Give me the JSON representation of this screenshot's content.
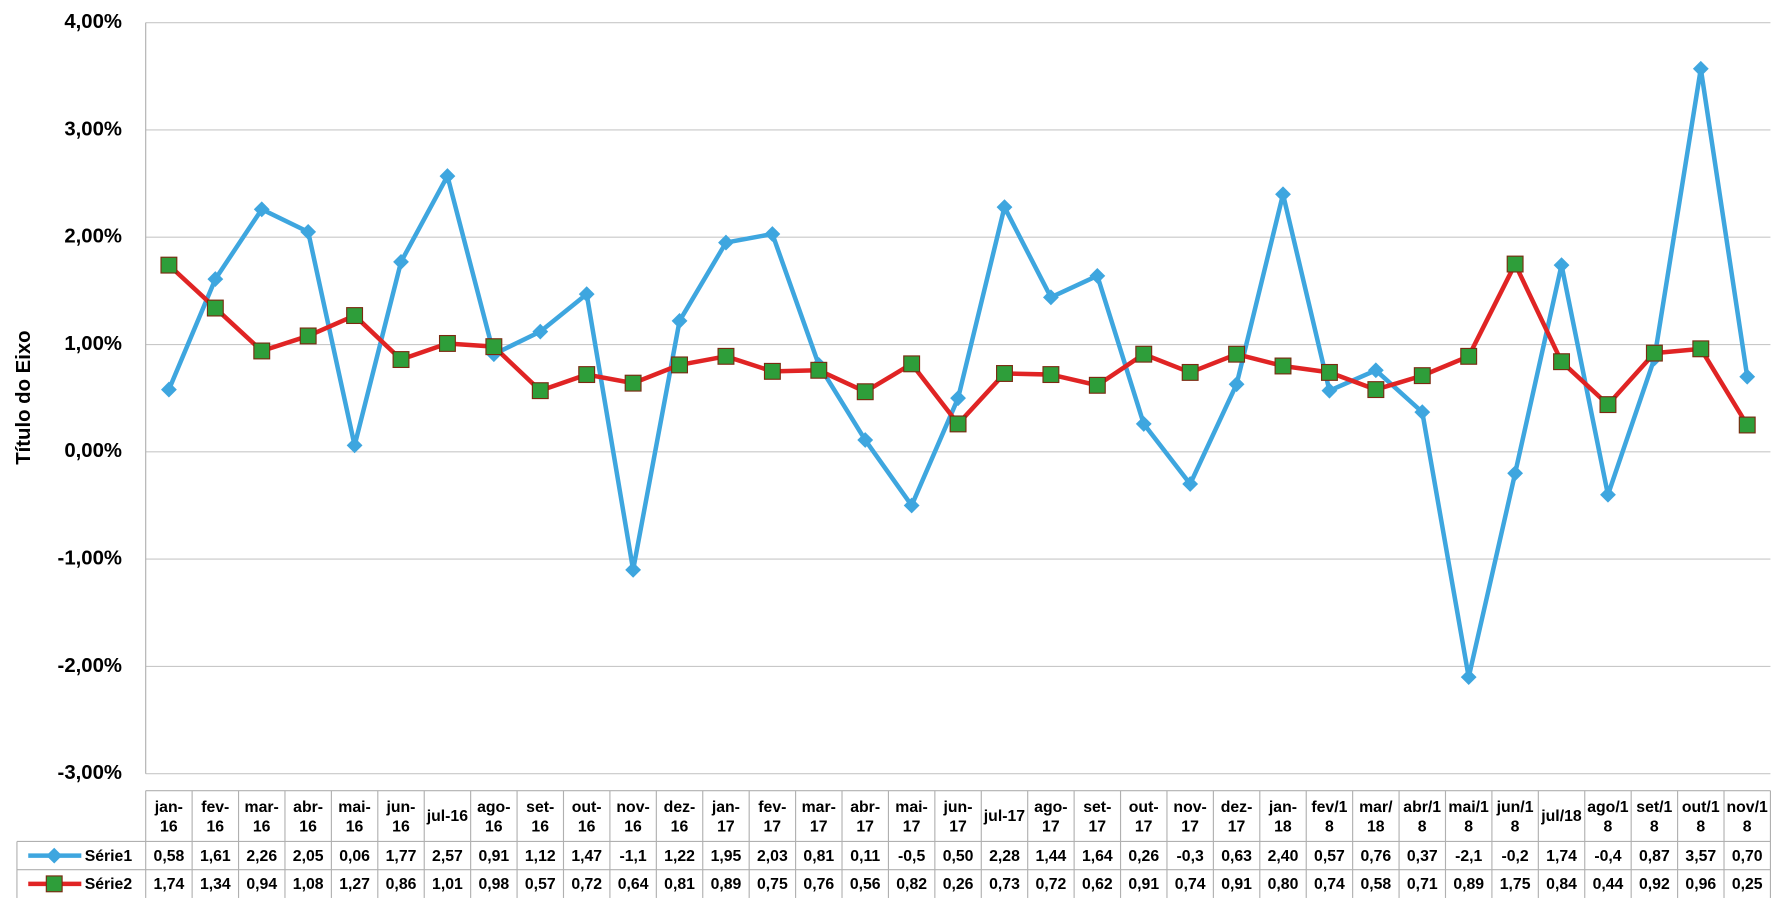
{
  "chart_data": {
    "type": "line",
    "y_axis_title": "Título do Eixo",
    "categories": [
      "jan-16",
      "fev-16",
      "mar-16",
      "abr-16",
      "mai-16",
      "jun-16",
      "jul-16",
      "ago-16",
      "set-16",
      "out-16",
      "nov-16",
      "dez-16",
      "jan-17",
      "fev-17",
      "mar-17",
      "abr-17",
      "mai-17",
      "jun-17",
      "jul-17",
      "ago-17",
      "set-17",
      "out-17",
      "nov-17",
      "dez-17",
      "jan-18",
      "fev/18",
      "mar/18",
      "abr/18",
      "mai/18",
      "jun/18",
      "jul/18",
      "ago/18",
      "set/18",
      "out/18",
      "nov/18"
    ],
    "series": [
      {
        "name": "Série1",
        "color": "#3ea6df",
        "marker": "diamond",
        "marker_color": "#3ea6df",
        "values": [
          0.58,
          1.61,
          2.26,
          2.05,
          0.06,
          1.77,
          2.57,
          0.91,
          1.12,
          1.47,
          -1.1,
          1.22,
          1.95,
          2.03,
          0.81,
          0.11,
          -0.5,
          0.5,
          2.28,
          1.44,
          1.64,
          0.26,
          -0.3,
          0.63,
          2.4,
          0.57,
          0.76,
          0.37,
          -2.1,
          -0.2,
          1.74,
          -0.4,
          0.87,
          3.57,
          0.7
        ],
        "value_labels": [
          "0,58",
          "1,61",
          "2,26",
          "2,05",
          "0,06",
          "1,77",
          "2,57",
          "0,91",
          "1,12",
          "1,47",
          "-1,1",
          "1,22",
          "1,95",
          "2,03",
          "0,81",
          "0,11",
          "-0,5",
          "0,50",
          "2,28",
          "1,44",
          "1,64",
          "0,26",
          "-0,3",
          "0,63",
          "2,40",
          "0,57",
          "0,76",
          "0,37",
          "-2,1",
          "-0,2",
          "1,74",
          "-0,4",
          "0,87",
          "3,57",
          "0,70"
        ]
      },
      {
        "name": "Série2",
        "color": "#e02424",
        "marker": "square",
        "marker_color": "#2e9e3a",
        "values": [
          1.74,
          1.34,
          0.94,
          1.08,
          1.27,
          0.86,
          1.01,
          0.98,
          0.57,
          0.72,
          0.64,
          0.81,
          0.89,
          0.75,
          0.76,
          0.56,
          0.82,
          0.26,
          0.73,
          0.72,
          0.62,
          0.91,
          0.74,
          0.91,
          0.8,
          0.74,
          0.58,
          0.71,
          0.89,
          1.75,
          0.84,
          0.44,
          0.92,
          0.96,
          0.25
        ],
        "value_labels": [
          "1,74",
          "1,34",
          "0,94",
          "1,08",
          "1,27",
          "0,86",
          "1,01",
          "0,98",
          "0,57",
          "0,72",
          "0,64",
          "0,81",
          "0,89",
          "0,75",
          "0,76",
          "0,56",
          "0,82",
          "0,26",
          "0,73",
          "0,72",
          "0,62",
          "0,91",
          "0,74",
          "0,91",
          "0,80",
          "0,74",
          "0,58",
          "0,71",
          "0,89",
          "1,75",
          "0,84",
          "0,44",
          "0,92",
          "0,96",
          "0,25"
        ]
      }
    ],
    "ylim": [
      -3,
      4
    ],
    "yticks": [
      {
        "value": -3,
        "label": "-3,00%"
      },
      {
        "value": -2,
        "label": "-2,00%"
      },
      {
        "value": -1,
        "label": "-1,00%"
      },
      {
        "value": 0,
        "label": "0,00%"
      },
      {
        "value": 1,
        "label": "1,00%"
      },
      {
        "value": 2,
        "label": "2,00%"
      },
      {
        "value": 3,
        "label": "3,00%"
      },
      {
        "value": 4,
        "label": "4,00%"
      }
    ],
    "grid": true
  }
}
